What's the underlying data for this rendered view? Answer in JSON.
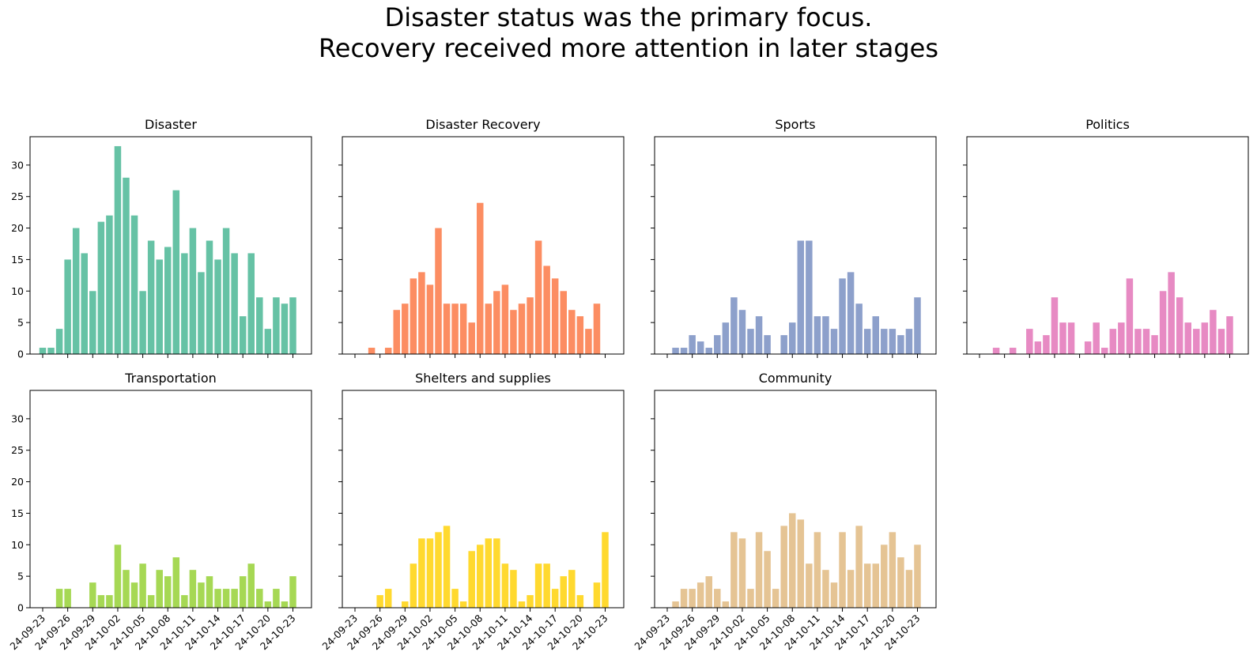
{
  "figure": {
    "title_line1": "Disaster status was the primary focus.",
    "title_line2": "Recovery received more attention in later stages"
  },
  "chart_data": [
    {
      "type": "bar",
      "title": "Disaster",
      "color": "#66c2a5",
      "xlabel": "",
      "ylabel": "",
      "ylim": [
        0,
        34.5
      ],
      "yticks": [
        0,
        5,
        10,
        15,
        20,
        25,
        30
      ],
      "xtick_labels": [
        "24-09-23",
        "24-09-26",
        "24-09-29",
        "24-10-02",
        "24-10-05",
        "24-10-08",
        "24-10-11",
        "24-10-14",
        "24-10-17",
        "24-10-20",
        "24-10-23"
      ],
      "values": [
        1,
        1,
        4,
        15,
        20,
        16,
        10,
        21,
        22,
        33,
        28,
        22,
        10,
        18,
        15,
        17,
        26,
        16,
        20,
        13,
        18,
        15,
        20,
        16,
        6,
        16,
        9,
        4,
        9,
        8,
        9
      ]
    },
    {
      "type": "bar",
      "title": "Disaster Recovery",
      "color": "#fc8d62",
      "xlabel": "",
      "ylabel": "",
      "ylim": [
        0,
        34.5
      ],
      "yticks": [
        0,
        5,
        10,
        15,
        20,
        25,
        30
      ],
      "xtick_labels": [
        "24-09-23",
        "24-09-26",
        "24-09-29",
        "24-10-02",
        "24-10-05",
        "24-10-08",
        "24-10-11",
        "24-10-14",
        "24-10-17",
        "24-10-20",
        "24-10-23"
      ],
      "values": [
        0,
        0,
        1,
        0,
        1,
        7,
        8,
        12,
        13,
        11,
        20,
        8,
        8,
        8,
        5,
        24,
        8,
        10,
        11,
        7,
        8,
        9,
        18,
        14,
        12,
        10,
        7,
        6,
        4,
        8,
        0
      ]
    },
    {
      "type": "bar",
      "title": "Sports",
      "color": "#8da0cb",
      "xlabel": "",
      "ylabel": "",
      "ylim": [
        0,
        34.5
      ],
      "yticks": [
        0,
        5,
        10,
        15,
        20,
        25,
        30
      ],
      "xtick_labels": [
        "24-09-23",
        "24-09-26",
        "24-09-29",
        "24-10-02",
        "24-10-05",
        "24-10-08",
        "24-10-11",
        "24-10-14",
        "24-10-17",
        "24-10-20",
        "24-10-23"
      ],
      "values": [
        0,
        1,
        1,
        3,
        2,
        1,
        3,
        5,
        9,
        7,
        4,
        6,
        3,
        0,
        3,
        5,
        18,
        18,
        6,
        6,
        4,
        12,
        13,
        8,
        4,
        6,
        4,
        4,
        3,
        4,
        9
      ]
    },
    {
      "type": "bar",
      "title": "Politics",
      "color": "#e78ac3",
      "xlabel": "",
      "ylabel": "",
      "ylim": [
        0,
        34.5
      ],
      "yticks": [
        0,
        5,
        10,
        15,
        20,
        25,
        30
      ],
      "xtick_labels": [
        "24-09-23",
        "24-09-26",
        "24-09-29",
        "24-10-02",
        "24-10-05",
        "24-10-08",
        "24-10-11",
        "24-10-14",
        "24-10-17",
        "24-10-20",
        "24-10-23"
      ],
      "values": [
        0,
        0,
        1,
        0,
        1,
        0,
        4,
        2,
        3,
        9,
        5,
        5,
        0,
        2,
        5,
        1,
        4,
        5,
        12,
        4,
        4,
        3,
        10,
        13,
        9,
        5,
        4,
        5,
        7,
        4,
        6
      ]
    },
    {
      "type": "bar",
      "title": "Transportation",
      "color": "#a6d854",
      "xlabel": "",
      "ylabel": "",
      "ylim": [
        0,
        34.5
      ],
      "yticks": [
        0,
        5,
        10,
        15,
        20,
        25,
        30
      ],
      "xtick_labels": [
        "24-09-23",
        "24-09-26",
        "24-09-29",
        "24-10-02",
        "24-10-05",
        "24-10-08",
        "24-10-11",
        "24-10-14",
        "24-10-17",
        "24-10-20",
        "24-10-23"
      ],
      "values": [
        0,
        0,
        3,
        3,
        0,
        0,
        4,
        2,
        2,
        10,
        6,
        4,
        7,
        2,
        6,
        5,
        8,
        2,
        6,
        4,
        5,
        3,
        3,
        3,
        5,
        7,
        3,
        1,
        3,
        1,
        5
      ]
    },
    {
      "type": "bar",
      "title": "Shelters and supplies",
      "color": "#ffd92f",
      "xlabel": "",
      "ylabel": "",
      "ylim": [
        0,
        34.5
      ],
      "yticks": [
        0,
        5,
        10,
        15,
        20,
        25,
        30
      ],
      "xtick_labels": [
        "24-09-23",
        "24-09-26",
        "24-09-29",
        "24-10-02",
        "24-10-05",
        "24-10-08",
        "24-10-11",
        "24-10-14",
        "24-10-17",
        "24-10-20",
        "24-10-23"
      ],
      "values": [
        0,
        0,
        0,
        2,
        3,
        0,
        1,
        7,
        11,
        11,
        12,
        13,
        3,
        1,
        9,
        10,
        11,
        11,
        7,
        6,
        1,
        2,
        7,
        7,
        3,
        5,
        6,
        2,
        0,
        4,
        12
      ]
    },
    {
      "type": "bar",
      "title": "Community",
      "color": "#e5c494",
      "xlabel": "",
      "ylabel": "",
      "ylim": [
        0,
        34.5
      ],
      "yticks": [
        0,
        5,
        10,
        15,
        20,
        25,
        30
      ],
      "xtick_labels": [
        "24-09-23",
        "24-09-26",
        "24-09-29",
        "24-10-02",
        "24-10-05",
        "24-10-08",
        "24-10-11",
        "24-10-14",
        "24-10-17",
        "24-10-20",
        "24-10-23"
      ],
      "values": [
        0,
        1,
        3,
        3,
        4,
        5,
        3,
        1,
        12,
        11,
        3,
        12,
        9,
        3,
        13,
        15,
        14,
        7,
        12,
        6,
        4,
        12,
        6,
        13,
        7,
        7,
        10,
        12,
        8,
        6,
        10
      ]
    }
  ]
}
